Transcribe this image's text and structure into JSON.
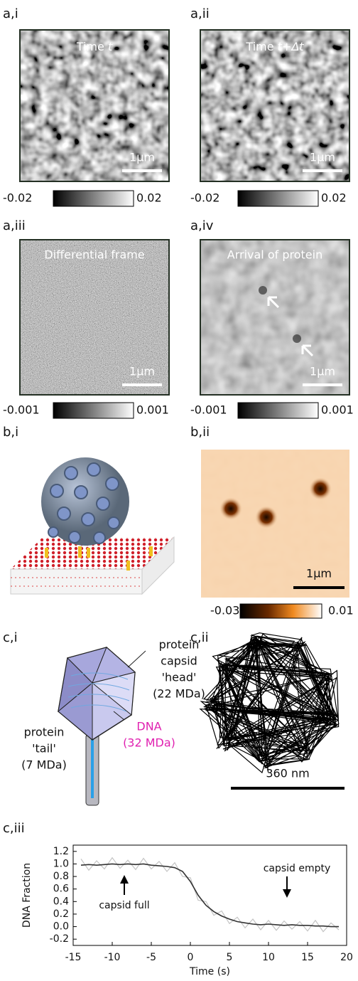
{
  "panels": {
    "a_i": {
      "label": "a,i",
      "title": "Time ",
      "title_italic": "t",
      "scale_bar": "1μm",
      "colorbar": [
        "-0.02",
        "0.02"
      ]
    },
    "a_ii": {
      "label": "a,ii",
      "title": "Time ",
      "title_italic": "t+Δt",
      "scale_bar": "1μm",
      "colorbar": [
        "-0.02",
        "0.02"
      ]
    },
    "a_iii": {
      "label": "a,iii",
      "title": "Differential frame",
      "scale_bar": "1μm",
      "colorbar": [
        "-0.001",
        "0.001"
      ]
    },
    "a_iv": {
      "label": "a,iv",
      "title": "Arrival of protein",
      "scale_bar": "1μm",
      "colorbar": [
        "-0.001",
        "0.001"
      ]
    },
    "b_i": {
      "label": "b,i"
    },
    "b_ii": {
      "label": "b,ii",
      "scale_bar": "1μm",
      "colorbar": [
        "-0.03",
        "0.01"
      ]
    },
    "c_i": {
      "label": "c,i",
      "head": [
        "protein",
        "capsid",
        "'head'",
        "(22 MDa)"
      ],
      "dna": [
        "DNA",
        "(32 MDa)"
      ],
      "tail": [
        "protein",
        "'tail'",
        "(7 MDa)"
      ]
    },
    "c_ii": {
      "label": "c,ii",
      "scale_bar": "360 nm"
    },
    "c_iii": {
      "label": "c,iii"
    }
  },
  "chart_data": {
    "type": "line",
    "xlabel": "Time (s)",
    "ylabel": "DNA Fraction",
    "x": [
      -14,
      -13,
      -12,
      -11,
      -10,
      -9,
      -8,
      -7,
      -6,
      -5,
      -4,
      -3,
      -2,
      -1,
      0,
      1,
      2,
      3,
      4,
      5,
      6,
      7,
      8,
      9,
      10,
      11,
      12,
      13,
      14,
      15,
      16,
      17,
      18,
      19
    ],
    "series": [
      {
        "color": "#c4c4c4",
        "values": [
          1.08,
          0.9,
          1.05,
          0.92,
          1.1,
          0.93,
          1.06,
          0.91,
          1.09,
          0.92,
          1.04,
          0.88,
          1.02,
          0.8,
          0.78,
          0.42,
          0.4,
          0.18,
          0.25,
          0.05,
          0.15,
          -0.02,
          0.12,
          -0.05,
          0.1,
          -0.06,
          0.09,
          -0.04,
          0.08,
          -0.07,
          0.1,
          -0.08,
          0.06,
          -0.05
        ]
      },
      {
        "color": "#333333",
        "values": [
          0.98,
          0.99,
          0.98,
          0.99,
          1.0,
          0.99,
          1.0,
          0.99,
          1.0,
          0.98,
          0.97,
          0.96,
          0.94,
          0.88,
          0.72,
          0.5,
          0.34,
          0.24,
          0.17,
          0.12,
          0.08,
          0.06,
          0.04,
          0.03,
          0.04,
          0.03,
          0.02,
          0.03,
          0.02,
          0.02,
          0.01,
          0.01,
          0.0,
          0.0
        ]
      }
    ],
    "xlim": [
      -15,
      20
    ],
    "xticks": [
      -15,
      -10,
      -5,
      0,
      5,
      10,
      15,
      20
    ],
    "ylim": [
      -0.3,
      1.3
    ],
    "yticks": [
      -0.2,
      {
        "value": 0,
        "label": "0.0"
      },
      0.2,
      0.4,
      0.6,
      0.8,
      {
        "value": 1,
        "label": "1.0"
      },
      1.2
    ],
    "annotations": [
      "capsid full",
      "capsid empty"
    ]
  }
}
